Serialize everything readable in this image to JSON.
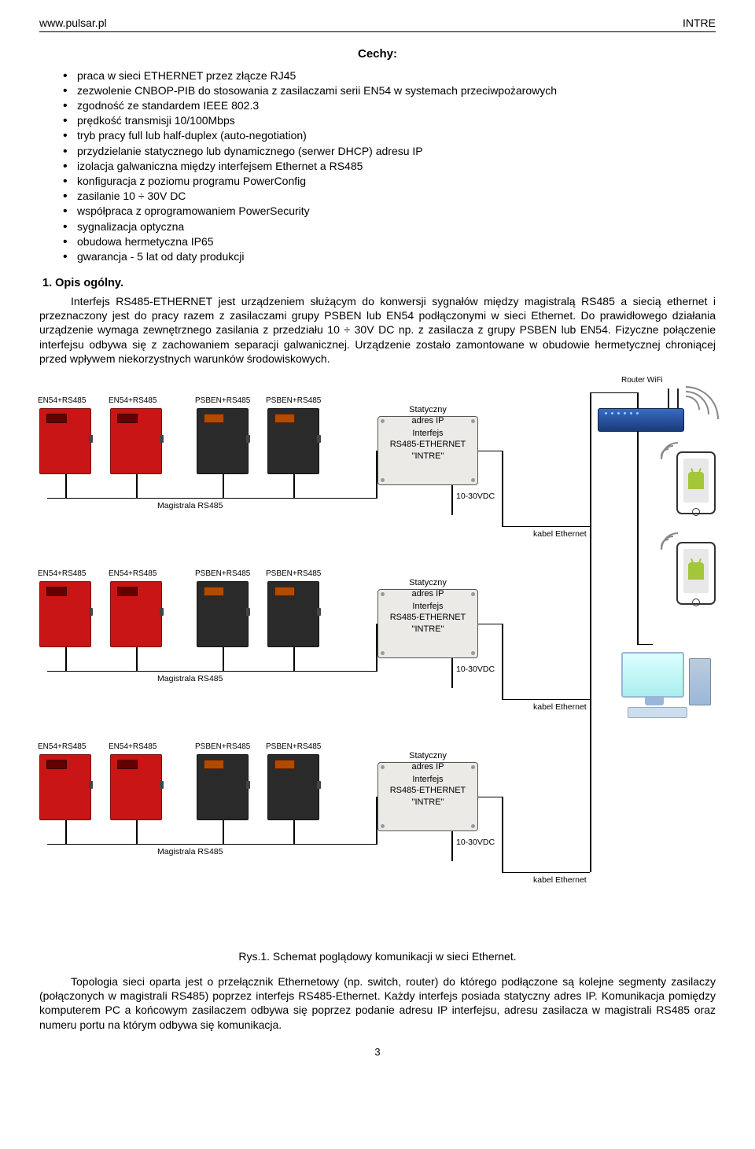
{
  "header": {
    "left": "www.pulsar.pl",
    "right": "INTRE"
  },
  "sections": {
    "features_title": "Cechy:",
    "features": [
      "praca w sieci ETHERNET przez złącze RJ45",
      "zezwolenie CNBOP-PIB do stosowania z zasilaczami serii EN54 w systemach przeciwpożarowych",
      "zgodność ze standardem IEEE 802.3",
      "prędkość transmisji 10/100Mbps",
      "tryb pracy full lub half-duplex (auto-negotiation)",
      "przydzielanie statycznego lub dynamicznego (serwer DHCP) adresu IP",
      "izolacja galwaniczna między interfejsem Ethernet a RS485",
      "konfiguracja z poziomu programu PowerConfig",
      "zasilanie 10 ÷ 30V DC",
      "współpraca z oprogramowaniem PowerSecurity",
      "sygnalizacja optyczna",
      "obudowa hermetyczna IP65",
      "gwarancja - 5 lat od daty produkcji"
    ],
    "heading1": "1.  Opis ogólny.",
    "para1": "Interfejs RS485-ETHERNET jest urządzeniem służącym do konwersji sygnałów między magistralą RS485 a siecią ethernet i przeznaczony jest do pracy razem z zasilaczami grupy PSBEN lub EN54 podłączonymi w sieci Ethernet. Do prawidłowego działania urządzenie wymaga zewnętrznego zasilania z przedziału 10 ÷ 30V DC np. z zasilacza z grupy PSBEN lub EN54. Fizyczne połączenie interfejsu odbywa się z zachowaniem separacji galwanicznej. Urządzenie zostało zamontowane w obudowie hermetycznej chroniącej przed wpływem niekorzystnych warunków środowiskowych.",
    "figure_caption": "Rys.1. Schemat poglądowy komunikacji w sieci Ethernet.",
    "para2": "Topologia sieci oparta jest o przełącznik Ethernetowy (np. switch, router) do którego podłączone są kolejne segmenty zasilaczy (połączonych w magistrali RS485) poprzez interfejs RS485-Ethernet. Każdy interfejs posiada statyczny adres IP. Komunikacja pomiędzy komputerem PC a końcowym zasilaczem odbywa się poprzez podanie adresu IP interfejsu, adresu zasilacza w magistrali RS485 oraz numeru portu na którym odbywa się komunikacja."
  },
  "diagram": {
    "unit_labels": [
      "EN54+RS485",
      "EN54+RS485",
      "PSBEN+RS485",
      "PSBEN+RS485"
    ],
    "bus_label": "Magistrala RS485",
    "interface": {
      "top": "Statyczny\nadres IP",
      "l1": "Interfejs",
      "l2": "RS485-ETHERNET",
      "l3": "\"INTRE\""
    },
    "v_label": "10-30VDC",
    "eth_label": "kabel Ethernet",
    "router_label": "Router WiFi"
  },
  "page_number": "3"
}
